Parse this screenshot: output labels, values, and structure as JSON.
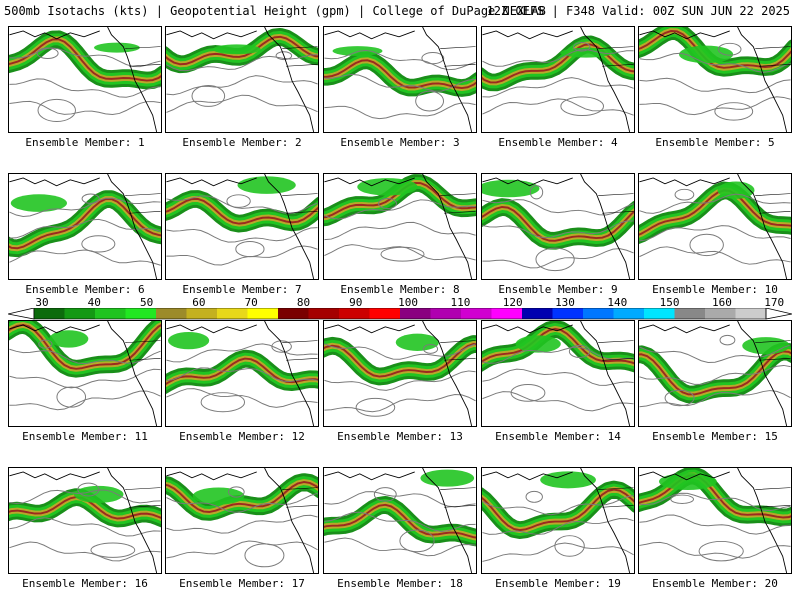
{
  "header": {
    "title_left": "500mb Isotachs (kts) | Geopotential Height (gpm) | College of DuPage NEXLAB",
    "title_right": "12Z GEFS | F348 Valid: 00Z SUN JUN 22 2025"
  },
  "panels": [
    {
      "label": "Ensemble Member: 1"
    },
    {
      "label": "Ensemble Member: 2"
    },
    {
      "label": "Ensemble Member: 3"
    },
    {
      "label": "Ensemble Member: 4"
    },
    {
      "label": "Ensemble Member: 5"
    },
    {
      "label": "Ensemble Member: 6"
    },
    {
      "label": "Ensemble Member: 7"
    },
    {
      "label": "Ensemble Member: 8"
    },
    {
      "label": "Ensemble Member: 9"
    },
    {
      "label": "Ensemble Member: 10"
    },
    {
      "label": "Ensemble Member: 11"
    },
    {
      "label": "Ensemble Member: 12"
    },
    {
      "label": "Ensemble Member: 13"
    },
    {
      "label": "Ensemble Member: 14"
    },
    {
      "label": "Ensemble Member: 15"
    },
    {
      "label": "Ensemble Member: 16"
    },
    {
      "label": "Ensemble Member: 17"
    },
    {
      "label": "Ensemble Member: 18"
    },
    {
      "label": "Ensemble Member: 19"
    },
    {
      "label": "Ensemble Member: 20"
    }
  ],
  "scale": {
    "labels": [
      "30",
      "40",
      "50",
      "60",
      "70",
      "80",
      "90",
      "100",
      "110",
      "120",
      "130",
      "140",
      "150",
      "160",
      "170"
    ],
    "colors": [
      "#0c6b0c",
      "#139913",
      "#1fc41f",
      "#22e822",
      "#9c8b2a",
      "#c4b11f",
      "#e8d81a",
      "#ffff00",
      "#7a0000",
      "#a50000",
      "#cc0000",
      "#ff0000",
      "#8a0080",
      "#b000b0",
      "#d000d0",
      "#ff00ff",
      "#0000b0",
      "#0033ff",
      "#0077ff",
      "#00aaff",
      "#00e5ff",
      "#888888",
      "#aaaaaa",
      "#cccccc"
    ]
  }
}
